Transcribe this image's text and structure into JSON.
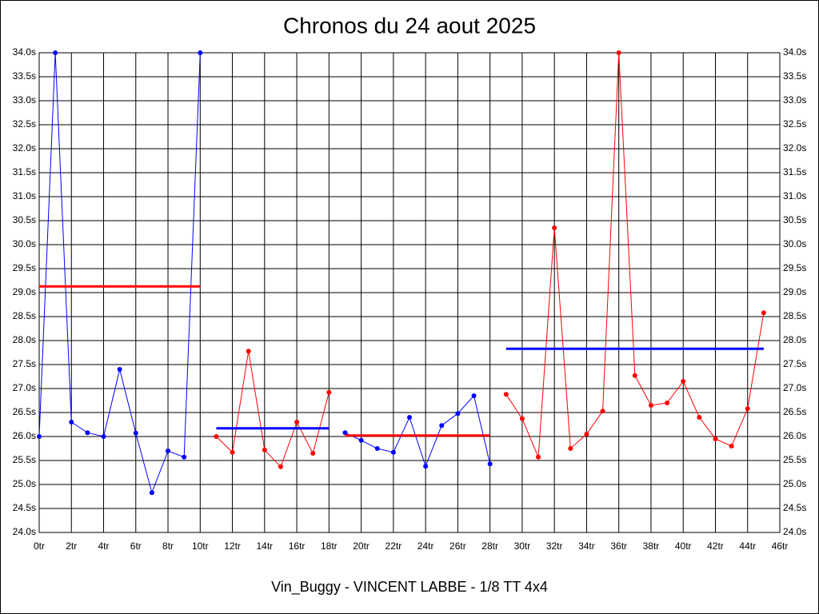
{
  "chart_data": {
    "type": "line",
    "title": "Chronos du 24 aout 2025",
    "x_label": "Vin_Buggy - VINCENT LABBE - 1/8 TT 4x4",
    "xlim": [
      0,
      46
    ],
    "ylim": [
      24.0,
      34.0
    ],
    "grid": true,
    "xticks": [
      {
        "value": 0,
        "label": "0tr"
      },
      {
        "value": 2,
        "label": "2tr"
      },
      {
        "value": 4,
        "label": "4tr"
      },
      {
        "value": 6,
        "label": "6tr"
      },
      {
        "value": 8,
        "label": "8tr"
      },
      {
        "value": 10,
        "label": "10tr"
      },
      {
        "value": 12,
        "label": "12tr"
      },
      {
        "value": 14,
        "label": "14tr"
      },
      {
        "value": 16,
        "label": "16tr"
      },
      {
        "value": 18,
        "label": "18tr"
      },
      {
        "value": 20,
        "label": "20tr"
      },
      {
        "value": 22,
        "label": "22tr"
      },
      {
        "value": 24,
        "label": "24tr"
      },
      {
        "value": 26,
        "label": "26tr"
      },
      {
        "value": 28,
        "label": "28tr"
      },
      {
        "value": 30,
        "label": "30tr"
      },
      {
        "value": 32,
        "label": "32tr"
      },
      {
        "value": 34,
        "label": "34tr"
      },
      {
        "value": 36,
        "label": "36tr"
      },
      {
        "value": 38,
        "label": "38tr"
      },
      {
        "value": 40,
        "label": "40tr"
      },
      {
        "value": 42,
        "label": "42tr"
      },
      {
        "value": 44,
        "label": "44tr"
      },
      {
        "value": 46,
        "label": "46tr"
      }
    ],
    "yticks": [
      {
        "value": 24.0,
        "label": "24.0s"
      },
      {
        "value": 24.5,
        "label": "24.5s"
      },
      {
        "value": 25.0,
        "label": "25.0s"
      },
      {
        "value": 25.5,
        "label": "25.5s"
      },
      {
        "value": 26.0,
        "label": "26.0s"
      },
      {
        "value": 26.5,
        "label": "26.5s"
      },
      {
        "value": 27.0,
        "label": "27.0s"
      },
      {
        "value": 27.5,
        "label": "27.5s"
      },
      {
        "value": 28.0,
        "label": "28.0s"
      },
      {
        "value": 28.5,
        "label": "28.5s"
      },
      {
        "value": 29.0,
        "label": "29.0s"
      },
      {
        "value": 29.5,
        "label": "29.5s"
      },
      {
        "value": 30.0,
        "label": "30.0s"
      },
      {
        "value": 30.5,
        "label": "30.5s"
      },
      {
        "value": 31.0,
        "label": "31.0s"
      },
      {
        "value": 31.5,
        "label": "31.5s"
      },
      {
        "value": 32.0,
        "label": "32.0s"
      },
      {
        "value": 32.5,
        "label": "32.5s"
      },
      {
        "value": 33.0,
        "label": "33.0s"
      },
      {
        "value": 33.5,
        "label": "33.5s"
      },
      {
        "value": 34.0,
        "label": "34.0s"
      }
    ],
    "series": [
      {
        "color": "#0000ff",
        "x": [
          0,
          1,
          2,
          3,
          4,
          5,
          6,
          7,
          8,
          9,
          10
        ],
        "values": [
          26.0,
          34.0,
          26.3,
          26.08,
          26.0,
          27.4,
          26.07,
          24.83,
          25.7,
          25.57,
          34.0
        ]
      },
      {
        "color": "#ff0000",
        "x": [
          11,
          12,
          13,
          14,
          15,
          16,
          17,
          18
        ],
        "values": [
          26.0,
          25.67,
          27.78,
          25.72,
          25.37,
          26.3,
          25.65,
          26.92
        ]
      },
      {
        "color": "#0000ff",
        "x": [
          19,
          20,
          21,
          22,
          23,
          24,
          25,
          26,
          27,
          28
        ],
        "values": [
          26.08,
          25.92,
          25.75,
          25.67,
          26.4,
          25.38,
          26.23,
          26.48,
          26.85,
          25.43
        ]
      },
      {
        "color": "#ff0000",
        "x": [
          29,
          30,
          31,
          32,
          33,
          34,
          35,
          36,
          37,
          38,
          39,
          40,
          41,
          42,
          43,
          44,
          45
        ],
        "values": [
          26.88,
          26.37,
          25.57,
          30.35,
          25.75,
          26.05,
          26.53,
          34.0,
          27.27,
          26.65,
          26.7,
          27.15,
          26.4,
          25.95,
          25.8,
          26.58,
          28.58
        ]
      }
    ],
    "means": [
      {
        "color": "#ff0000",
        "x": [
          0,
          10
        ],
        "value": 29.13
      },
      {
        "color": "#0000ff",
        "x": [
          11,
          18
        ],
        "value": 26.17
      },
      {
        "color": "#ff0000",
        "x": [
          19,
          28
        ],
        "value": 26.02
      },
      {
        "color": "#0000ff",
        "x": [
          29,
          45
        ],
        "value": 27.83
      }
    ]
  }
}
